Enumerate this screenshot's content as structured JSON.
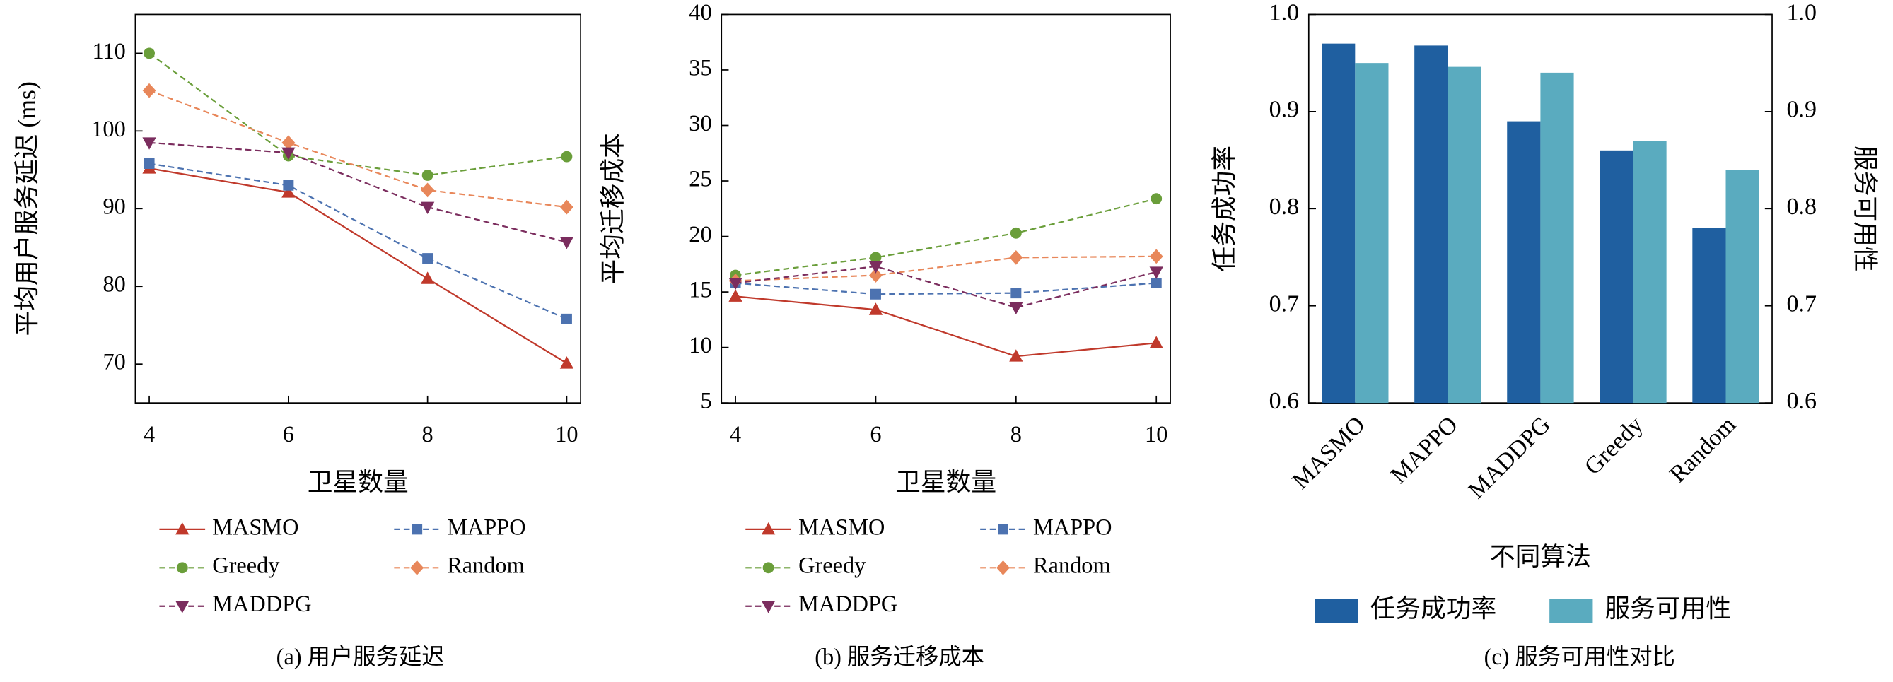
{
  "chart_data": [
    {
      "type": "line",
      "caption": "(a) 用户服务延迟",
      "xlabel": "卫星数量",
      "ylabel": "平均用户服务延迟 (ms)",
      "x": [
        4,
        6,
        8,
        10
      ],
      "xlim": [
        3.8,
        10.2
      ],
      "xticks": [
        4,
        6,
        8,
        10
      ],
      "ylim": [
        65,
        115
      ],
      "yticks": [
        70,
        80,
        90,
        100,
        110
      ],
      "series": [
        {
          "name": "MASMO",
          "color": "#c0392b",
          "marker": "triangle-up",
          "dashed": false,
          "values": [
            95.2,
            92.1,
            81.0,
            70.1
          ]
        },
        {
          "name": "MAPPO",
          "color": "#4c72b0",
          "marker": "square",
          "dashed": true,
          "values": [
            95.8,
            93.0,
            83.6,
            75.8
          ]
        },
        {
          "name": "Greedy",
          "color": "#6a9e3a",
          "marker": "circle",
          "dashed": true,
          "values": [
            110.0,
            96.8,
            94.3,
            96.7
          ]
        },
        {
          "name": "Random",
          "color": "#e8875a",
          "marker": "diamond",
          "dashed": true,
          "values": [
            105.2,
            98.5,
            92.4,
            90.2
          ]
        },
        {
          "name": "MADDPG",
          "color": "#7b2d5e",
          "marker": "triangle-down",
          "dashed": true,
          "values": [
            98.5,
            97.2,
            90.2,
            85.7
          ]
        }
      ]
    },
    {
      "type": "line",
      "caption": "(b) 服务迁移成本",
      "xlabel": "卫星数量",
      "ylabel": "平均迁移成本",
      "x": [
        4,
        6,
        8,
        10
      ],
      "xlim": [
        3.8,
        10.2
      ],
      "xticks": [
        4,
        6,
        8,
        10
      ],
      "ylim": [
        5,
        40
      ],
      "yticks": [
        5,
        10,
        15,
        20,
        25,
        30,
        35,
        40
      ],
      "series": [
        {
          "name": "MASMO",
          "color": "#c0392b",
          "marker": "triangle-up",
          "dashed": false,
          "values": [
            14.6,
            13.4,
            9.2,
            10.4
          ]
        },
        {
          "name": "MAPPO",
          "color": "#4c72b0",
          "marker": "square",
          "dashed": true,
          "values": [
            15.8,
            14.8,
            14.9,
            15.8
          ]
        },
        {
          "name": "Greedy",
          "color": "#6a9e3a",
          "marker": "circle",
          "dashed": true,
          "values": [
            16.5,
            18.1,
            20.3,
            23.4
          ]
        },
        {
          "name": "Random",
          "color": "#e8875a",
          "marker": "diamond",
          "dashed": true,
          "values": [
            16.0,
            16.5,
            18.1,
            18.2
          ]
        },
        {
          "name": "MADDPG",
          "color": "#7b2d5e",
          "marker": "triangle-down",
          "dashed": true,
          "values": [
            15.8,
            17.3,
            13.6,
            16.8
          ]
        }
      ]
    },
    {
      "type": "bar",
      "caption": "(c) 服务可用性对比",
      "xlabel": "不同算法",
      "ylabel": "任务成功率",
      "y2label": "服务可用性",
      "categories": [
        "MASMO",
        "MAPPO",
        "MADDPG",
        "Greedy",
        "Random"
      ],
      "ylim": [
        0.6,
        1.0
      ],
      "yticks": [
        0.6,
        0.7,
        0.8,
        0.9,
        {
          "value": 1.0,
          "label": "1.0"
        }
      ],
      "y2lim": [
        0.6,
        1.0
      ],
      "y2ticks": [
        0.6,
        0.7,
        0.8,
        0.9,
        {
          "value": 1.0,
          "label": "1.0"
        }
      ],
      "series": [
        {
          "name": "任务成功率",
          "color": "#1f5fa0",
          "values": [
            0.97,
            0.968,
            0.89,
            0.86,
            0.78
          ]
        },
        {
          "name": "服务可用性",
          "color": "#5aabbf",
          "axis": "y2",
          "values": [
            0.95,
            0.946,
            0.94,
            0.87,
            0.84
          ]
        }
      ]
    }
  ]
}
